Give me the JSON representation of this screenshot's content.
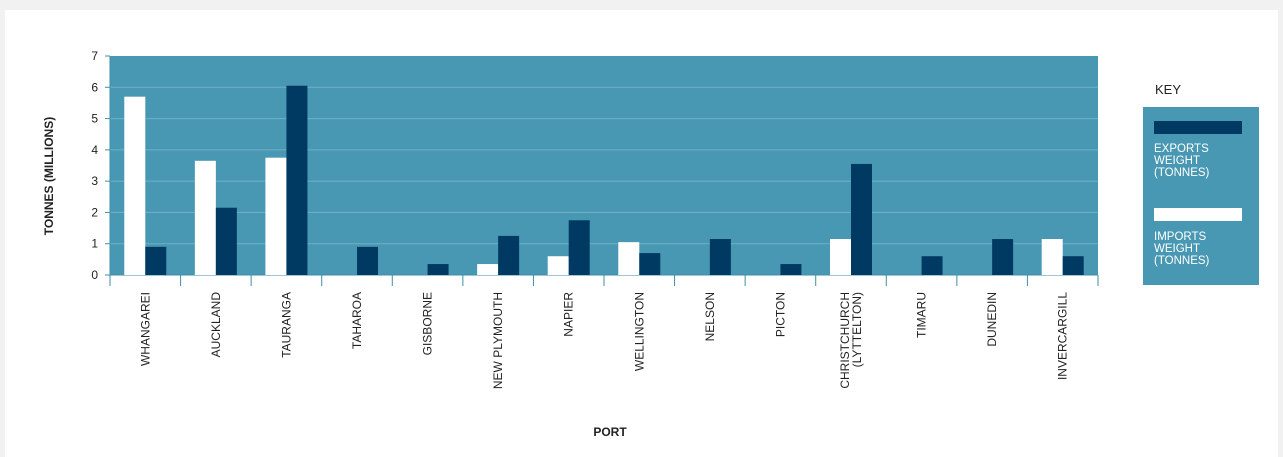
{
  "chart_data": {
    "type": "bar",
    "xlabel": "PORT",
    "ylabel": "TONNES (MILLIONS)",
    "ylim": [
      0,
      7
    ],
    "yticks": [
      0,
      1,
      2,
      3,
      4,
      5,
      6,
      7
    ],
    "grid": true,
    "legend_title": "KEY",
    "legend_placement": "right",
    "categories": [
      [
        "WHANGAREI"
      ],
      [
        "AUCKLAND"
      ],
      [
        "TAURANGA"
      ],
      [
        "TAHAROA"
      ],
      [
        "GISBORNE"
      ],
      [
        "NEW PLYMOUTH"
      ],
      [
        "NAPIER"
      ],
      [
        "WELLINGTON"
      ],
      [
        "NELSON"
      ],
      [
        "PICTON"
      ],
      [
        "CHRISTCHURCH",
        "(LYTTELTON)"
      ],
      [
        "TIMARU"
      ],
      [
        "DUNEDIN"
      ],
      [
        "INVERCARGILL"
      ]
    ],
    "series": [
      {
        "name": "IMPORTS WEIGHT (TONNES)",
        "legend_lines": [
          "IMPORTS",
          "WEIGHT",
          "(TONNES)"
        ],
        "color": "#ffffff",
        "values": [
          5.7,
          3.65,
          3.75,
          0,
          0,
          0.35,
          0.6,
          1.05,
          0,
          0,
          1.15,
          0,
          0,
          1.15
        ]
      },
      {
        "name": "EXPORTS WEIGHT (TONNES)",
        "legend_lines": [
          "EXPORTS",
          "WEIGHT",
          "(TONNES)"
        ],
        "color": "#003a63",
        "values": [
          0.9,
          2.15,
          6.05,
          0.9,
          0.35,
          1.25,
          1.75,
          0.7,
          1.15,
          0.35,
          3.55,
          0.6,
          1.15,
          0.6
        ]
      }
    ],
    "colors": {
      "plot_background": "#4898b3",
      "gridline": "#6fb0c6",
      "axis": "#3f8ea9",
      "text": "#222222"
    }
  }
}
